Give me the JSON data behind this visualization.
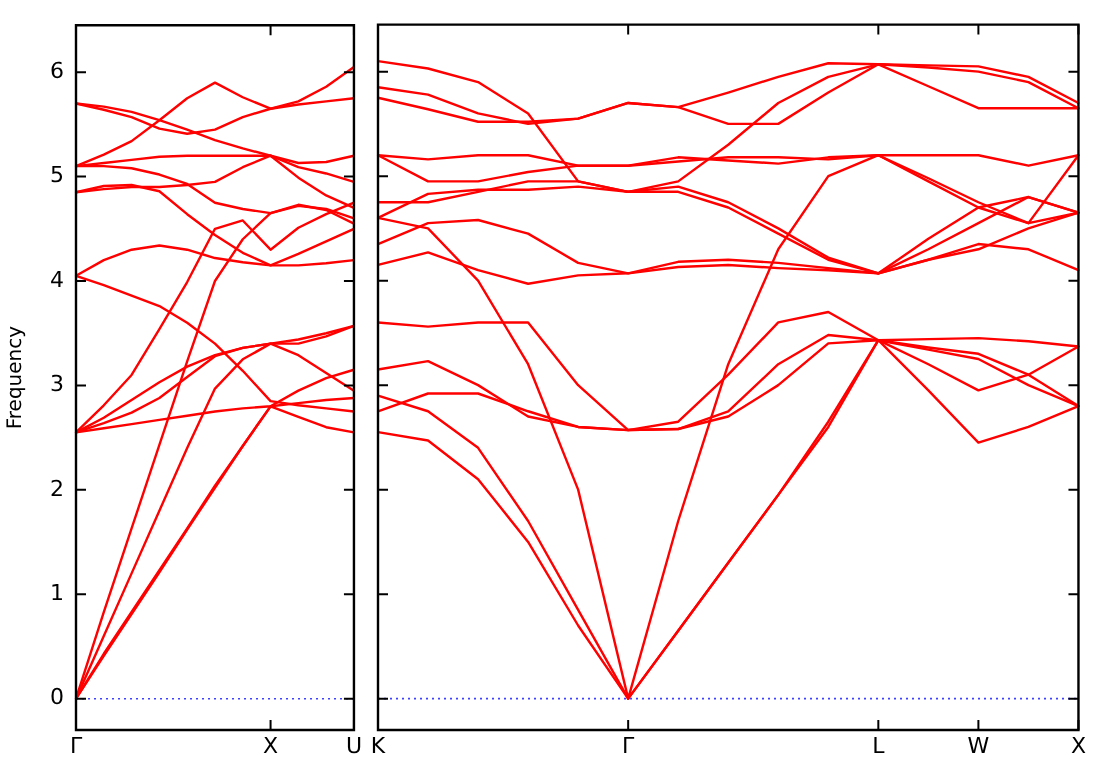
{
  "chart_data": [
    {
      "type": "line",
      "ylabel": "Frequency",
      "marker": "none",
      "line_style": "solid",
      "grid": false,
      "legend": false,
      "categories": [
        "Γ",
        null,
        null,
        null,
        null,
        null,
        null,
        "X",
        null,
        null,
        "U"
      ],
      "ylim": [
        -0.3,
        6.45
      ],
      "yticks": [
        0,
        1,
        2,
        3,
        4,
        5,
        6
      ],
      "ref_lines": [
        {
          "axis": "y",
          "value": 0,
          "color": "#4040ff",
          "line_style": "dotted"
        }
      ],
      "series": [
        {
          "color": "#ff0000",
          "values": [
            0,
            0.43,
            0.83,
            1.23,
            1.63,
            2.04,
            2.42,
            2.8,
            2.7,
            2.6,
            2.55
          ]
        },
        {
          "color": "#ff0000",
          "values": [
            0,
            0.41,
            0.81,
            1.21,
            1.62,
            2.02,
            2.42,
            2.8,
            2.95,
            3.07,
            3.15
          ]
        },
        {
          "color": "#ff0000",
          "values": [
            0,
            0.6,
            1.2,
            1.8,
            2.4,
            2.97,
            3.25,
            3.4,
            3.44,
            3.5,
            3.57
          ]
        },
        {
          "color": "#ff0000",
          "values": [
            0,
            0.83,
            1.63,
            2.43,
            3.23,
            4.0,
            4.4,
            4.65,
            4.73,
            4.68,
            4.55
          ]
        },
        {
          "color": "#ff0000",
          "values": [
            2.55,
            2.59,
            2.63,
            2.67,
            2.71,
            2.75,
            2.78,
            2.8,
            2.83,
            2.86,
            2.88
          ]
        },
        {
          "color": "#ff0000",
          "values": [
            2.55,
            2.69,
            2.86,
            3.03,
            3.18,
            3.29,
            3.36,
            3.4,
            3.4,
            3.47,
            3.57
          ]
        },
        {
          "color": "#ff0000",
          "values": [
            2.55,
            2.64,
            2.74,
            2.88,
            3.08,
            3.28,
            3.36,
            3.4,
            3.29,
            3.12,
            2.95
          ]
        },
        {
          "color": "#ff0000",
          "values": [
            2.55,
            2.81,
            3.1,
            3.54,
            3.99,
            4.5,
            4.58,
            4.3,
            4.51,
            4.64,
            4.75
          ]
        },
        {
          "color": "#ff0000",
          "values": [
            4.05,
            4.2,
            4.3,
            4.34,
            4.3,
            4.22,
            4.18,
            4.15,
            4.15,
            4.17,
            4.2
          ]
        },
        {
          "color": "#ff0000",
          "values": [
            4.05,
            3.96,
            3.86,
            3.76,
            3.6,
            3.4,
            3.14,
            2.85,
            2.81,
            2.78,
            2.75
          ]
        },
        {
          "color": "#ff0000",
          "values": [
            4.85,
            4.88,
            4.9,
            4.9,
            4.92,
            4.95,
            5.09,
            5.2,
            5.13,
            5.14,
            5.2
          ]
        },
        {
          "color": "#ff0000",
          "values": [
            4.85,
            4.91,
            4.92,
            4.86,
            4.64,
            4.44,
            4.27,
            4.15,
            4.26,
            4.38,
            4.5
          ]
        },
        {
          "color": "#ff0000",
          "values": [
            5.1,
            5.13,
            5.16,
            5.19,
            5.2,
            5.2,
            5.2,
            5.2,
            5.09,
            5.03,
            4.95
          ]
        },
        {
          "color": "#ff0000",
          "values": [
            5.1,
            5.1,
            5.08,
            5.02,
            4.93,
            4.75,
            4.69,
            4.65,
            4.72,
            4.69,
            4.6
          ]
        },
        {
          "color": "#ff0000",
          "values": [
            5.1,
            5.21,
            5.34,
            5.54,
            5.75,
            5.9,
            5.76,
            5.65,
            5.72,
            5.86,
            6.05
          ]
        },
        {
          "color": "#ff0000",
          "values": [
            5.7,
            5.67,
            5.62,
            5.54,
            5.45,
            5.35,
            5.27,
            5.2,
            4.99,
            4.82,
            4.7
          ]
        },
        {
          "color": "#ff0000",
          "values": [
            5.7,
            5.64,
            5.57,
            5.46,
            5.41,
            5.45,
            5.57,
            5.65,
            5.69,
            5.72,
            5.75
          ]
        }
      ]
    },
    {
      "type": "line",
      "marker": "none",
      "line_style": "solid",
      "grid": false,
      "legend": false,
      "tick_labels": "x",
      "categories": [
        "K",
        null,
        null,
        null,
        null,
        "Γ",
        null,
        null,
        null,
        null,
        "L",
        null,
        "W",
        null,
        "X"
      ],
      "ylim": [
        -0.3,
        6.45
      ],
      "yticks": [
        0,
        1,
        2,
        3,
        4,
        5,
        6
      ],
      "ref_lines": [
        {
          "axis": "y",
          "value": 0,
          "color": "#4040ff",
          "line_style": "dotted"
        }
      ],
      "series": [
        {
          "color": "#ff0000",
          "values": [
            2.55,
            2.47,
            2.1,
            1.5,
            0.7,
            0,
            0.65,
            1.3,
            1.95,
            2.6,
            3.43,
            3.36,
            3.3,
            3.1,
            2.8
          ]
        },
        {
          "color": "#ff0000",
          "values": [
            2.9,
            2.75,
            2.4,
            1.7,
            0.85,
            0,
            0.65,
            1.3,
            1.95,
            2.65,
            3.43,
            2.95,
            2.45,
            2.6,
            2.8
          ]
        },
        {
          "color": "#ff0000",
          "values": [
            4.6,
            4.5,
            4.0,
            3.2,
            2.0,
            0,
            1.7,
            3.2,
            4.3,
            5.0,
            5.2,
            4.95,
            4.7,
            4.8,
            4.65
          ]
        },
        {
          "color": "#ff0000",
          "values": [
            2.75,
            2.92,
            2.92,
            2.75,
            2.6,
            2.57,
            2.58,
            2.7,
            3.0,
            3.4,
            3.43,
            3.44,
            3.45,
            3.42,
            3.37
          ]
        },
        {
          "color": "#ff0000",
          "values": [
            3.15,
            3.23,
            3.0,
            2.7,
            2.6,
            2.57,
            2.65,
            3.1,
            3.6,
            3.7,
            3.43,
            3.34,
            3.25,
            3.0,
            2.8
          ]
        },
        {
          "color": "#ff0000",
          "values": [
            3.6,
            3.56,
            3.6,
            3.6,
            3.0,
            2.57,
            2.58,
            2.75,
            3.2,
            3.48,
            3.43,
            3.2,
            2.95,
            3.1,
            3.37
          ]
        },
        {
          "color": "#ff0000",
          "values": [
            4.15,
            4.27,
            4.1,
            3.97,
            4.05,
            4.07,
            4.18,
            4.2,
            4.17,
            4.12,
            4.07,
            4.2,
            4.35,
            4.3,
            4.1
          ]
        },
        {
          "color": "#ff0000",
          "values": [
            4.35,
            4.55,
            4.58,
            4.45,
            4.17,
            4.07,
            4.13,
            4.15,
            4.12,
            4.1,
            4.07,
            4.2,
            4.3,
            4.5,
            4.65
          ]
        },
        {
          "color": "#ff0000",
          "values": [
            4.6,
            4.83,
            4.87,
            4.87,
            4.9,
            4.85,
            4.85,
            4.7,
            4.45,
            4.2,
            4.07,
            4.3,
            4.55,
            4.8,
            4.65
          ]
        },
        {
          "color": "#ff0000",
          "values": [
            4.75,
            4.75,
            4.85,
            4.95,
            4.95,
            4.85,
            4.9,
            4.75,
            4.5,
            4.22,
            4.07,
            4.4,
            4.7,
            4.55,
            4.65
          ]
        },
        {
          "color": "#ff0000",
          "values": [
            5.2,
            5.16,
            5.2,
            5.2,
            5.1,
            5.1,
            5.18,
            5.15,
            5.12,
            5.18,
            5.2,
            5.2,
            5.2,
            5.1,
            5.2
          ]
        },
        {
          "color": "#ff0000",
          "values": [
            5.2,
            4.95,
            4.95,
            5.04,
            5.1,
            5.1,
            5.14,
            5.18,
            5.18,
            5.16,
            5.2,
            4.98,
            4.75,
            4.55,
            5.2
          ]
        },
        {
          "color": "#ff0000",
          "values": [
            5.75,
            5.64,
            5.52,
            5.52,
            5.55,
            5.7,
            5.66,
            5.5,
            5.5,
            5.8,
            6.07,
            5.86,
            5.65,
            5.65,
            5.65
          ]
        },
        {
          "color": "#ff0000",
          "values": [
            5.85,
            5.78,
            5.6,
            5.5,
            5.55,
            5.7,
            5.66,
            5.8,
            5.95,
            6.08,
            6.07,
            6.04,
            6.0,
            5.9,
            5.65
          ]
        },
        {
          "color": "#ff0000",
          "values": [
            6.1,
            6.03,
            5.9,
            5.6,
            4.95,
            4.85,
            4.95,
            5.3,
            5.7,
            5.95,
            6.07,
            6.06,
            6.05,
            5.95,
            5.7
          ]
        }
      ]
    }
  ]
}
